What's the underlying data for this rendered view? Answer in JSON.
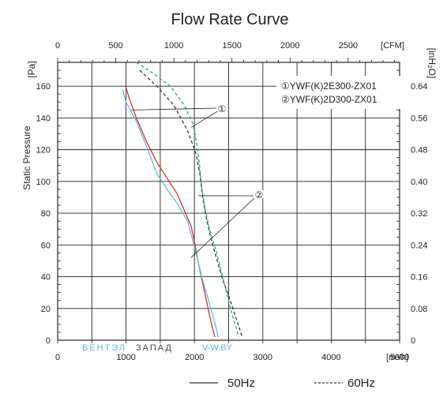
{
  "chart_data": {
    "type": "line",
    "title": "Flow Rate Curve",
    "ylabel": "Static Pressure",
    "x_unit_bottom": "[m³/h]",
    "x_unit_top": "[CFM]",
    "y_unit_left": "[Pa]",
    "y_unit_right": "[inH₂O]",
    "xlim": [
      0,
      5000
    ],
    "ylim": [
      0,
      160
    ],
    "x_ticks": [
      "0",
      "1000",
      "2000",
      "3000",
      "4000",
      "5000"
    ],
    "x_ticks_top": [
      "0",
      "500",
      "1000",
      "1500",
      "2000",
      "2500",
      "[CFM]"
    ],
    "y_ticks": [
      "0",
      "20",
      "40",
      "60",
      "80",
      "100",
      "120",
      "140",
      "160"
    ],
    "y_ticks_right": [
      "0",
      "0.08",
      "0.16",
      "0.24",
      "0.32",
      "0.40",
      "0.48",
      "0.56",
      "0.64"
    ],
    "grid": true,
    "legend_position": "top-right",
    "legend": [
      "①YWF(K)2E300-ZX01",
      "②YWF(K)2D300-ZX01"
    ],
    "callouts": [
      "①",
      "②"
    ],
    "footer_legend": [
      "50Hz",
      "60Hz"
    ],
    "series": [
      {
        "model": "①",
        "frequency": "50Hz",
        "color": "#d62f2f",
        "dash": "solid",
        "points": [
          [
            1000,
            159
          ],
          [
            1050,
            152
          ],
          [
            1150,
            140
          ],
          [
            1300,
            125
          ],
          [
            1450,
            112
          ],
          [
            1600,
            102
          ],
          [
            1750,
            92
          ],
          [
            1850,
            82
          ],
          [
            1950,
            72
          ],
          [
            2000,
            62
          ],
          [
            2050,
            50
          ],
          [
            2100,
            40
          ],
          [
            2150,
            30
          ],
          [
            2200,
            20
          ],
          [
            2250,
            10
          ],
          [
            2300,
            2
          ]
        ]
      },
      {
        "model": "①",
        "frequency": "60Hz",
        "color": "#333333",
        "dash": "dashed",
        "points": [
          [
            1200,
            170
          ],
          [
            1450,
            160
          ],
          [
            1700,
            148
          ],
          [
            1900,
            132
          ],
          [
            2020,
            118
          ],
          [
            2080,
            105
          ],
          [
            2120,
            90
          ],
          [
            2170,
            78
          ],
          [
            2230,
            66
          ],
          [
            2300,
            55
          ],
          [
            2400,
            40
          ],
          [
            2500,
            28
          ],
          [
            2600,
            15
          ],
          [
            2700,
            2
          ]
        ]
      },
      {
        "model": "②",
        "frequency": "50Hz",
        "color": "#5bc0de",
        "dash": "solid",
        "points": [
          [
            950,
            158
          ],
          [
            1000,
            150
          ],
          [
            1150,
            138
          ],
          [
            1300,
            122
          ],
          [
            1450,
            105
          ],
          [
            1600,
            95
          ],
          [
            1750,
            86
          ],
          [
            1900,
            75
          ],
          [
            1980,
            62
          ],
          [
            2050,
            50
          ],
          [
            2120,
            38
          ],
          [
            2200,
            26
          ],
          [
            2280,
            14
          ],
          [
            2350,
            2
          ]
        ]
      },
      {
        "model": "②",
        "frequency": "60Hz",
        "color": "#2ca86a",
        "dash": "dashed",
        "points": [
          [
            1150,
            175
          ],
          [
            1400,
            168
          ],
          [
            1650,
            160
          ],
          [
            1850,
            148
          ],
          [
            1980,
            136
          ],
          [
            2030,
            125
          ],
          [
            2070,
            112
          ],
          [
            2100,
            98
          ],
          [
            2150,
            84
          ],
          [
            2220,
            70
          ],
          [
            2320,
            56
          ],
          [
            2400,
            42
          ],
          [
            2480,
            28
          ],
          [
            2560,
            15
          ],
          [
            2650,
            2
          ]
        ]
      }
    ]
  },
  "watermark": {
    "part1": "ВЕНТЭЛ",
    "part2": "ЗАПАД",
    "part3": "V-W.BY"
  }
}
